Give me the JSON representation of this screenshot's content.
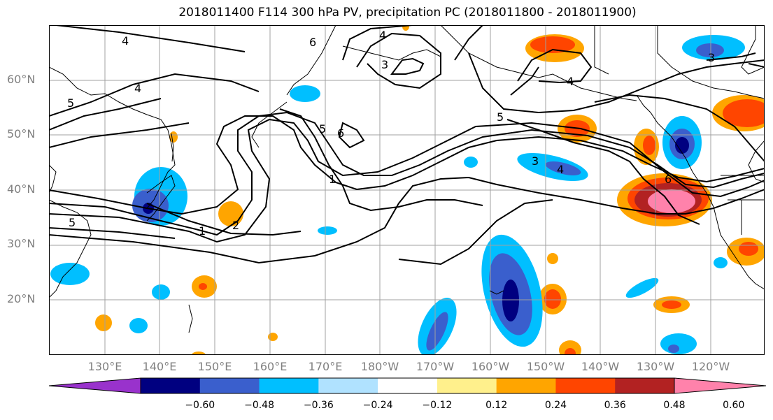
{
  "title": "2018011400 F114 300 hPa PV, precipitation PC (2018011800 - 2018011900)",
  "map": {
    "lat_labels": [
      "60°N",
      "50°N",
      "40°N",
      "30°N",
      "20°N"
    ],
    "lon_labels": [
      "130°E",
      "140°E",
      "150°E",
      "160°E",
      "170°E",
      "180°W",
      "170°W",
      "160°W",
      "150°W",
      "140°W",
      "130°W",
      "120°W"
    ],
    "contour_labels": [
      "4",
      "4",
      "5",
      "4",
      "3",
      "6",
      "6",
      "5",
      "5",
      "1",
      "2",
      "1",
      "5",
      "4",
      "3",
      "4",
      "6",
      "3"
    ]
  },
  "colorbar": {
    "colors": [
      "#9932cc",
      "#000080",
      "#3a5fcd",
      "#00bfff",
      "#b0e2ff",
      "#ffffff",
      "#fff08c",
      "#ffa500",
      "#ff4500",
      "#b22222",
      "#ff82ab"
    ],
    "ticks": [
      "−0.60",
      "−0.48",
      "−0.36",
      "−0.24",
      "−0.12",
      "0.12",
      "0.24",
      "0.36",
      "0.48",
      "0.60"
    ]
  }
}
